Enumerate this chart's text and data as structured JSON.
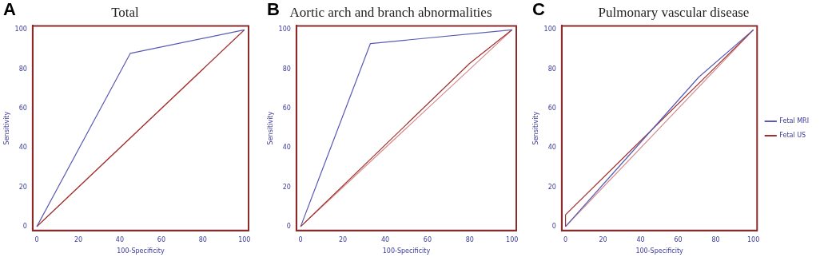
{
  "chart_data": [
    {
      "type": "line",
      "title": "Total",
      "annotations": [
        "A"
      ],
      "xlabel": "100-Specificity",
      "ylabel": "Sensitivity",
      "xlim": [
        -2,
        102
      ],
      "ylim": [
        -2,
        102
      ],
      "xticks": [
        0,
        20,
        40,
        60,
        80,
        100
      ],
      "yticks": [
        0,
        20,
        40,
        60,
        80,
        100
      ],
      "grid": false,
      "legend": false,
      "marker": "none",
      "series": [
        {
          "color": "#5a5ab4",
          "x": [
            0,
            45,
            100
          ],
          "values": [
            0,
            88,
            100
          ]
        },
        {
          "color": "#a0302d",
          "x": [
            0,
            100
          ],
          "values": [
            0,
            100
          ]
        },
        {
          "color": "#d48a8a",
          "x": [
            0,
            100
          ],
          "values": [
            0,
            100
          ]
        }
      ]
    },
    {
      "type": "line",
      "title": "Aortic arch and branch abnormalities",
      "annotations": [
        "B"
      ],
      "xlabel": "100-Specificity",
      "ylabel": "Sensitivity",
      "xlim": [
        -2,
        102
      ],
      "ylim": [
        -2,
        102
      ],
      "xticks": [
        0,
        20,
        40,
        60,
        80,
        100
      ],
      "yticks": [
        0,
        20,
        40,
        60,
        80,
        100
      ],
      "grid": false,
      "legend": false,
      "marker": "none",
      "series": [
        {
          "color": "#5a5ab4",
          "x": [
            0,
            33,
            100
          ],
          "values": [
            0,
            93,
            100
          ]
        },
        {
          "color": "#a0302d",
          "x": [
            0,
            80,
            100
          ],
          "values": [
            0,
            83,
            100
          ]
        },
        {
          "color": "#d48a8a",
          "x": [
            0,
            100
          ],
          "values": [
            0,
            100
          ]
        }
      ]
    },
    {
      "type": "line",
      "title": "Pulmonary vascular disease",
      "annotations": [
        "C"
      ],
      "xlabel": "100-Specificity",
      "ylabel": "Sensitivity",
      "xlim": [
        -2,
        102
      ],
      "ylim": [
        -2,
        102
      ],
      "xticks": [
        0,
        20,
        40,
        60,
        80,
        100
      ],
      "yticks": [
        0,
        20,
        40,
        60,
        80,
        100
      ],
      "grid": false,
      "legend": "right",
      "marker": "none",
      "series": [
        {
          "name": "Fetal MRI",
          "color": "#5a5ab4",
          "x": [
            0,
            71,
            100
          ],
          "values": [
            0,
            76,
            100
          ]
        },
        {
          "name": "Fetal US",
          "color": "#a0302d",
          "x": [
            0,
            0,
            100
          ],
          "values": [
            0,
            6,
            100
          ]
        },
        {
          "color": "#d48a8a",
          "x": [
            0,
            100
          ],
          "values": [
            0,
            100
          ]
        }
      ]
    }
  ]
}
